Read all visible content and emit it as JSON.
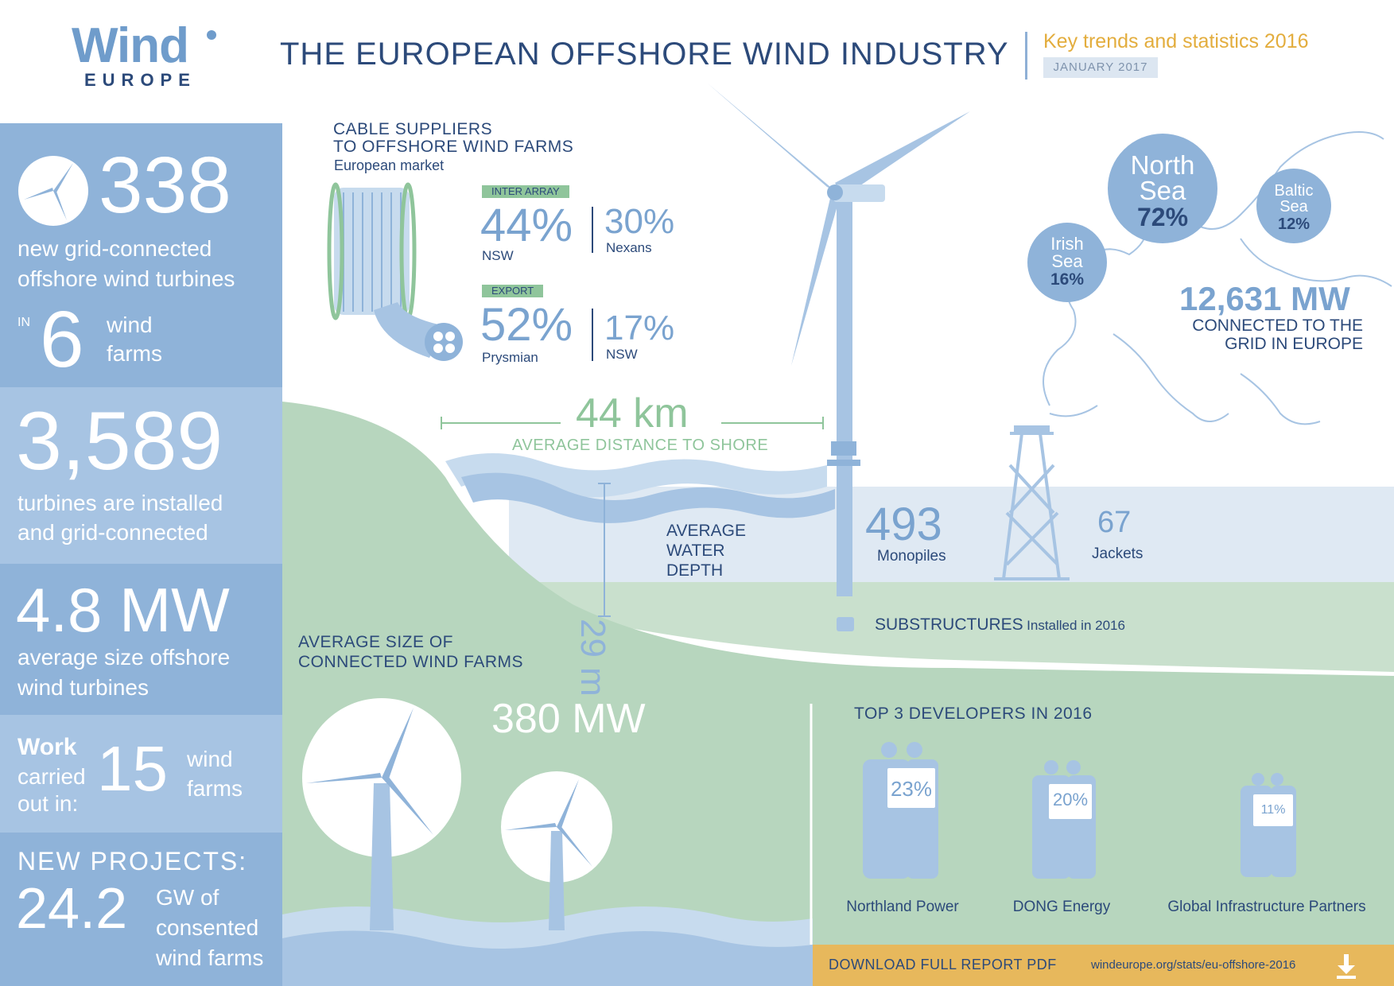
{
  "header": {
    "logo_wind": "Wind",
    "logo_europe": "EUROPE",
    "title": "THE EUROPEAN OFFSHORE WIND INDUSTRY",
    "subtitle": "Key trends and statistics 2016",
    "date": "JANUARY 2017"
  },
  "left_panel": {
    "turbines_count": "338",
    "turbines_line1": "new grid-connected",
    "turbines_line2": "offshore wind turbines",
    "in_label": "IN",
    "farms_count": "6",
    "farms_line1": "wind",
    "farms_line2": "farms",
    "installed_count": "3,589",
    "installed_line1": "turbines are installed",
    "installed_line2": "and grid-connected",
    "avg_size_value": "4.8 MW",
    "avg_size_line1": "average size offshore",
    "avg_size_line2": "wind turbines",
    "work_label1": "Work",
    "work_label2": "carried",
    "work_label3": "out in:",
    "work_count": "15",
    "work_farms1": "wind",
    "work_farms2": "farms",
    "new_projects_label": "NEW PROJECTS:",
    "new_projects_value": "24.2",
    "new_projects_line1": "GW of",
    "new_projects_line2": "consented",
    "new_projects_line3": "wind farms"
  },
  "cables": {
    "title_line1": "CABLE SUPPLIERS",
    "title_line2": "TO OFFSHORE WIND FARMS",
    "subtitle": "European market",
    "inter_array": {
      "tag": "INTER ARRAY",
      "primary_pct": "44%",
      "primary_name": "NSW",
      "secondary_pct": "30%",
      "secondary_name": "Nexans"
    },
    "export": {
      "tag": "EXPORT",
      "primary_pct": "52%",
      "primary_name": "Prysmian",
      "secondary_pct": "17%",
      "secondary_name": "NSW"
    }
  },
  "distance": {
    "value": "44 km",
    "label": "AVERAGE DISTANCE TO SHORE"
  },
  "depth": {
    "value": "29 m",
    "line1": "AVERAGE",
    "line2": "WATER",
    "line3": "DEPTH"
  },
  "substructures": {
    "monopiles_value": "493",
    "monopiles_label": "Monopiles",
    "jackets_value": "67",
    "jackets_label": "Jackets",
    "title": "SUBSTRUCTURES",
    "title_suffix": "Installed in 2016"
  },
  "map": {
    "north_sea_name1": "North",
    "north_sea_name2": "Sea",
    "north_sea_pct": "72%",
    "baltic_sea_name1": "Baltic",
    "baltic_sea_name2": "Sea",
    "baltic_sea_pct": "12%",
    "irish_sea_name1": "Irish",
    "irish_sea_name2": "Sea",
    "irish_sea_pct": "16%",
    "capacity_value": "12,631 MW",
    "capacity_line1": "CONNECTED TO THE",
    "capacity_line2": "GRID IN EUROPE"
  },
  "farm_size": {
    "title_line1": "AVERAGE SIZE OF",
    "title_line2": "CONNECTED WIND FARMS",
    "value": "380 MW"
  },
  "developers": {
    "title": "TOP 3 DEVELOPERS IN 2016",
    "items": [
      {
        "name": "Northland Power",
        "pct": "23%"
      },
      {
        "name": "DONG Energy",
        "pct": "20%"
      },
      {
        "name": "Global Infrastructure Partners",
        "pct": "11%"
      }
    ]
  },
  "download": {
    "label": "DOWNLOAD FULL REPORT PDF",
    "url": "windeurope.org/stats/eu-offshore-2016"
  },
  "colors": {
    "navy": "#2c4a7a",
    "blue": "#8fb3d9",
    "light_blue": "#a7c4e3",
    "green": "#b7d6be",
    "gold": "#e7b85c"
  }
}
